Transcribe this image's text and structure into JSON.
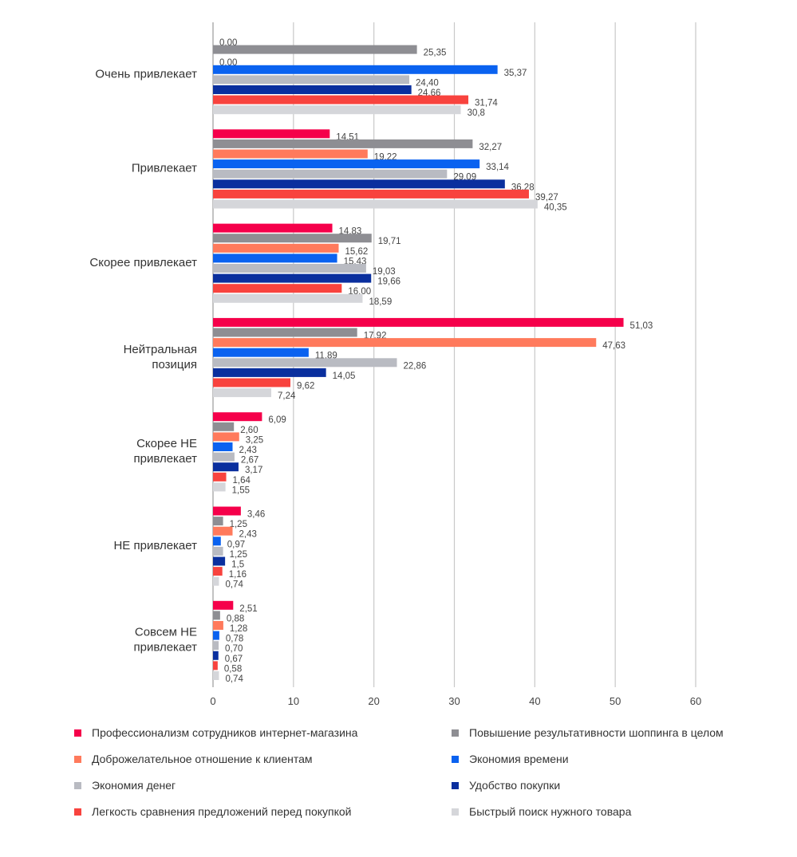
{
  "chart_data": {
    "type": "bar",
    "orientation": "horizontal",
    "title": "",
    "xlabel": "",
    "ylabel": "",
    "xlim": [
      0,
      60
    ],
    "xticks": [
      "0",
      "10",
      "20",
      "30",
      "40",
      "50",
      "60"
    ],
    "grid": true,
    "legend_placement": "bottom",
    "categories": [
      [
        "Очень привлекает"
      ],
      [
        "Привлекает"
      ],
      [
        "Скорее привлекает"
      ],
      [
        "Нейтральная",
        "позиция"
      ],
      [
        "Скорее НЕ",
        "привлекает"
      ],
      [
        "НЕ привлекает"
      ],
      [
        "Совсем НЕ",
        "привлекает"
      ]
    ],
    "series": [
      {
        "name": "Профессионализм сотрудников интернет-магазина",
        "color": "#f5004a",
        "values": [
          0.0,
          14.51,
          14.83,
          51.03,
          6.09,
          3.46,
          2.51
        ],
        "labels": [
          "0,00",
          "14,51",
          "14,83",
          "51,03",
          "6,09",
          "3,46",
          "2,51"
        ]
      },
      {
        "name": "Повышение результативности шоппинга в целом",
        "color": "#8e8e93",
        "values": [
          25.35,
          32.27,
          19.71,
          17.92,
          2.6,
          1.25,
          0.88
        ],
        "labels": [
          "25,35",
          "32,27",
          "19,71",
          "17,92",
          "2,60",
          "1,25",
          "0,88"
        ]
      },
      {
        "name": "Доброжелательное отношение к клиентам",
        "color": "#ff7a5c",
        "values": [
          0.0,
          19.22,
          15.62,
          47.63,
          3.25,
          2.43,
          1.28
        ],
        "labels": [
          "0,00",
          "19,22",
          "15,62",
          "47,63",
          "3,25",
          "2,43",
          "1,28"
        ]
      },
      {
        "name": "Экономия времени",
        "color": "#0a62f0",
        "values": [
          35.37,
          33.14,
          15.43,
          11.89,
          2.43,
          0.97,
          0.78
        ],
        "labels": [
          "35,37",
          "33,14",
          "15,43",
          "11,89",
          "2,43",
          "0,97",
          "0,78"
        ]
      },
      {
        "name": "Экономия денег",
        "color": "#b9bbc2",
        "values": [
          24.4,
          29.09,
          19.03,
          22.86,
          2.67,
          1.25,
          0.7
        ],
        "labels": [
          "24,40",
          "29,09",
          "19,03",
          "22,86",
          "2,67",
          "1,25",
          "0,70"
        ]
      },
      {
        "name": "Удобство покупки",
        "color": "#0a2f9e",
        "values": [
          24.66,
          36.28,
          19.66,
          14.05,
          3.17,
          1.5,
          0.67
        ],
        "labels": [
          "24,66",
          "36,28",
          "19,66",
          "14,05",
          "3,17",
          "1,5",
          "0,67"
        ]
      },
      {
        "name": "Легкость сравнения предложений перед покупкой",
        "color": "#f8433e",
        "values": [
          31.74,
          39.27,
          16.0,
          9.62,
          1.64,
          1.16,
          0.58
        ],
        "labels": [
          "31,74",
          "39,27",
          "16,00",
          "9,62",
          "1,64",
          "1,16",
          "0,58"
        ]
      },
      {
        "name": "Быстрый поиск нужного товара",
        "color": "#d5d6da",
        "values": [
          30.8,
          40.35,
          18.59,
          7.24,
          1.55,
          0.74,
          0.74
        ],
        "labels": [
          "30,8",
          "40,35",
          "18,59",
          "7,24",
          "1,55",
          "0,74",
          "0,74"
        ]
      }
    ]
  }
}
